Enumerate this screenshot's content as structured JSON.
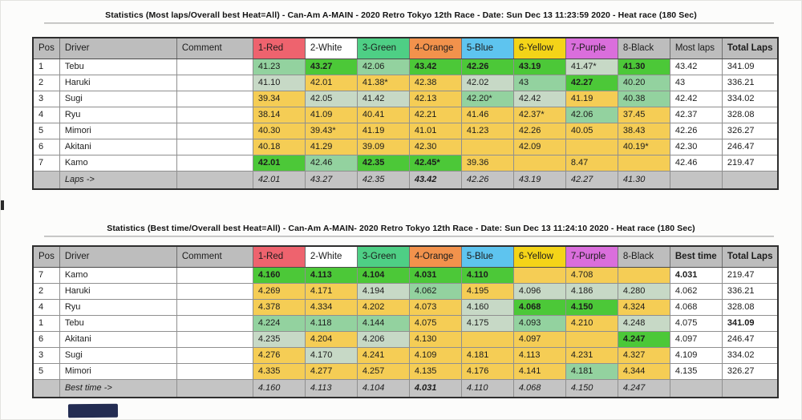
{
  "colors": {
    "hdr": "#bdbdbd",
    "red": "#ee636e",
    "white": "#ffffff",
    "green": "#4ecf85",
    "orange": "#f2924c",
    "blue": "#5ec4ef",
    "yellow": "#f4d418",
    "purple": "#da6edc",
    "y": "#f5cd55",
    "g1": "#c7d9c6",
    "g2": "#93d29f",
    "g3": "#4cc838",
    "w": "#ffffff",
    "footer_gray": "#c4c4c4"
  },
  "tables": [
    {
      "title": "Statistics (Most laps/Overall best Heat=All) - Can-Am A-MAIN - 2020 Retro Tokyo 12th Race - Date: Sun Dec 13 11:23:59 2020 - Heat race (180 Sec)",
      "columns": [
        {
          "label": "Pos",
          "bg": "hdr",
          "bold": false
        },
        {
          "label": "Driver",
          "bg": "hdr",
          "bold": false
        },
        {
          "label": "Comment",
          "bg": "hdr",
          "bold": false
        },
        {
          "label": "1-Red",
          "bg": "red",
          "bold": false
        },
        {
          "label": "2-White",
          "bg": "white",
          "bold": false
        },
        {
          "label": "3-Green",
          "bg": "green",
          "bold": false
        },
        {
          "label": "4-Orange",
          "bg": "orange",
          "bold": false
        },
        {
          "label": "5-Blue",
          "bg": "blue",
          "bold": false
        },
        {
          "label": "6-Yellow",
          "bg": "yellow",
          "bold": false
        },
        {
          "label": "7-Purple",
          "bg": "purple",
          "bold": false
        },
        {
          "label": "8-Black",
          "bg": "hdr",
          "bold": false
        },
        {
          "label": "Most laps",
          "bg": "hdr",
          "bold": false
        },
        {
          "label": "Total Laps",
          "bg": "hdr",
          "bold": true
        }
      ],
      "rows": [
        {
          "pos": "1",
          "driver": "Tebu",
          "comment": "",
          "heats": [
            [
              "41.23",
              "g2",
              0
            ],
            [
              "43.27",
              "g3",
              1
            ],
            [
              "42.06",
              "g2",
              0
            ],
            [
              "43.42",
              "g3",
              1
            ],
            [
              "42.26",
              "g3",
              1
            ],
            [
              "43.19",
              "g3",
              1
            ],
            [
              "41.47*",
              "g1",
              0
            ],
            [
              "41.30",
              "g3",
              1
            ]
          ],
          "summary": "43.42",
          "summary_bold": 0,
          "total": "341.09",
          "total_bold": 0
        },
        {
          "pos": "2",
          "driver": "Haruki",
          "comment": "",
          "heats": [
            [
              "41.10",
              "g1",
              0
            ],
            [
              "42.01",
              "y",
              0
            ],
            [
              "41.38*",
              "y",
              0
            ],
            [
              "42.38",
              "y",
              0
            ],
            [
              "42.02",
              "g1",
              0
            ],
            [
              "43",
              "g2",
              0
            ],
            [
              "42.27",
              "g3",
              1
            ],
            [
              "40.20",
              "g2",
              0
            ]
          ],
          "summary": "43",
          "summary_bold": 0,
          "total": "336.21",
          "total_bold": 0
        },
        {
          "pos": "3",
          "driver": "Sugi",
          "comment": "",
          "heats": [
            [
              "39.34",
              "y",
              0
            ],
            [
              "42.05",
              "g1",
              0
            ],
            [
              "41.42",
              "g1",
              0
            ],
            [
              "42.13",
              "y",
              0
            ],
            [
              "42.20*",
              "g2",
              0
            ],
            [
              "42.42",
              "g1",
              0
            ],
            [
              "41.19",
              "y",
              0
            ],
            [
              "40.38",
              "g2",
              0
            ]
          ],
          "summary": "42.42",
          "summary_bold": 0,
          "total": "334.02",
          "total_bold": 0
        },
        {
          "pos": "4",
          "driver": "Ryu",
          "comment": "",
          "heats": [
            [
              "38.14",
              "y",
              0
            ],
            [
              "41.09",
              "y",
              0
            ],
            [
              "40.41",
              "y",
              0
            ],
            [
              "42.21",
              "y",
              0
            ],
            [
              "41.46",
              "y",
              0
            ],
            [
              "42.37*",
              "y",
              0
            ],
            [
              "42.06",
              "g2",
              0
            ],
            [
              "37.45",
              "y",
              0
            ]
          ],
          "summary": "42.37",
          "summary_bold": 0,
          "total": "328.08",
          "total_bold": 0
        },
        {
          "pos": "5",
          "driver": "Mimori",
          "comment": "",
          "heats": [
            [
              "40.30",
              "y",
              0
            ],
            [
              "39.43*",
              "y",
              0
            ],
            [
              "41.19",
              "y",
              0
            ],
            [
              "41.01",
              "y",
              0
            ],
            [
              "41.23",
              "y",
              0
            ],
            [
              "42.26",
              "y",
              0
            ],
            [
              "40.05",
              "y",
              0
            ],
            [
              "38.43",
              "y",
              0
            ]
          ],
          "summary": "42.26",
          "summary_bold": 0,
          "total": "326.27",
          "total_bold": 0
        },
        {
          "pos": "6",
          "driver": "Akitani",
          "comment": "",
          "heats": [
            [
              "40.18",
              "y",
              0
            ],
            [
              "41.29",
              "y",
              0
            ],
            [
              "39.09",
              "y",
              0
            ],
            [
              "42.30",
              "y",
              0
            ],
            [
              "",
              "y",
              0
            ],
            [
              "42.09",
              "y",
              0
            ],
            [
              "",
              "y",
              0
            ],
            [
              "40.19*",
              "y",
              0
            ]
          ],
          "summary": "42.30",
          "summary_bold": 0,
          "total": "246.47",
          "total_bold": 0
        },
        {
          "pos": "7",
          "driver": "Kamo",
          "comment": "",
          "heats": [
            [
              "42.01",
              "g3",
              1
            ],
            [
              "42.46",
              "g2",
              0
            ],
            [
              "42.35",
              "g3",
              1
            ],
            [
              "42.45*",
              "g3",
              1
            ],
            [
              "39.36",
              "y",
              0
            ],
            [
              "",
              "y",
              0
            ],
            [
              "8.47",
              "y",
              0
            ],
            [
              "",
              "y",
              0
            ]
          ],
          "summary": "42.46",
          "summary_bold": 0,
          "total": "219.47",
          "total_bold": 0
        }
      ],
      "footer_label": "Laps ->",
      "footer_values": [
        [
          "42.01",
          0
        ],
        [
          "43.27",
          0
        ],
        [
          "42.35",
          0
        ],
        [
          "43.42",
          1
        ],
        [
          "42.26",
          0
        ],
        [
          "43.19",
          0
        ],
        [
          "42.27",
          0
        ],
        [
          "41.30",
          0
        ]
      ]
    },
    {
      "title": "Statistics (Best time/Overall best Heat=All) - Can-Am A-MAIN- 2020 Retro Tokyo 12th Race - Date: Sun Dec 13 11:24:10 2020 - Heat race (180 Sec)",
      "columns": [
        {
          "label": "Pos",
          "bg": "hdr",
          "bold": false
        },
        {
          "label": "Driver",
          "bg": "hdr",
          "bold": false
        },
        {
          "label": "Comment",
          "bg": "hdr",
          "bold": false
        },
        {
          "label": "1-Red",
          "bg": "red",
          "bold": false
        },
        {
          "label": "2-White",
          "bg": "white",
          "bold": false
        },
        {
          "label": "3-Green",
          "bg": "green",
          "bold": false
        },
        {
          "label": "4-Orange",
          "bg": "orange",
          "bold": false
        },
        {
          "label": "5-Blue",
          "bg": "blue",
          "bold": false
        },
        {
          "label": "6-Yellow",
          "bg": "yellow",
          "bold": false
        },
        {
          "label": "7-Purple",
          "bg": "purple",
          "bold": false
        },
        {
          "label": "8-Black",
          "bg": "hdr",
          "bold": false
        },
        {
          "label": "Best time",
          "bg": "hdr",
          "bold": true
        },
        {
          "label": "Total Laps",
          "bg": "hdr",
          "bold": true
        }
      ],
      "rows": [
        {
          "pos": "7",
          "driver": "Kamo",
          "comment": "",
          "heats": [
            [
              "4.160",
              "g3",
              1
            ],
            [
              "4.113",
              "g3",
              1
            ],
            [
              "4.104",
              "g3",
              1
            ],
            [
              "4.031",
              "g3",
              1
            ],
            [
              "4.110",
              "g3",
              1
            ],
            [
              "",
              "y",
              0
            ],
            [
              "4.708",
              "y",
              0
            ],
            [
              "",
              "y",
              0
            ]
          ],
          "summary": "4.031",
          "summary_bold": 1,
          "total": "219.47",
          "total_bold": 0
        },
        {
          "pos": "2",
          "driver": "Haruki",
          "comment": "",
          "heats": [
            [
              "4.269",
              "y",
              0
            ],
            [
              "4.171",
              "y",
              0
            ],
            [
              "4.194",
              "g1",
              0
            ],
            [
              "4.062",
              "g2",
              0
            ],
            [
              "4.195",
              "y",
              0
            ],
            [
              "4.096",
              "g1",
              0
            ],
            [
              "4.186",
              "g1",
              0
            ],
            [
              "4.280",
              "g1",
              0
            ]
          ],
          "summary": "4.062",
          "summary_bold": 0,
          "total": "336.21",
          "total_bold": 0
        },
        {
          "pos": "4",
          "driver": "Ryu",
          "comment": "",
          "heats": [
            [
              "4.378",
              "y",
              0
            ],
            [
              "4.334",
              "y",
              0
            ],
            [
              "4.202",
              "y",
              0
            ],
            [
              "4.073",
              "y",
              0
            ],
            [
              "4.160",
              "g1",
              0
            ],
            [
              "4.068",
              "g3",
              1
            ],
            [
              "4.150",
              "g3",
              1
            ],
            [
              "4.324",
              "y",
              0
            ]
          ],
          "summary": "4.068",
          "summary_bold": 0,
          "total": "328.08",
          "total_bold": 0
        },
        {
          "pos": "1",
          "driver": "Tebu",
          "comment": "",
          "heats": [
            [
              "4.224",
              "g2",
              0
            ],
            [
              "4.118",
              "g2",
              0
            ],
            [
              "4.144",
              "g2",
              0
            ],
            [
              "4.075",
              "y",
              0
            ],
            [
              "4.175",
              "g1",
              0
            ],
            [
              "4.093",
              "g2",
              0
            ],
            [
              "4.210",
              "y",
              0
            ],
            [
              "4.248",
              "g1",
              0
            ]
          ],
          "summary": "4.075",
          "summary_bold": 0,
          "total": "341.09",
          "total_bold": 1
        },
        {
          "pos": "6",
          "driver": "Akitani",
          "comment": "",
          "heats": [
            [
              "4.235",
              "g1",
              0
            ],
            [
              "4.204",
              "y",
              0
            ],
            [
              "4.206",
              "g1",
              0
            ],
            [
              "4.130",
              "y",
              0
            ],
            [
              "",
              "y",
              0
            ],
            [
              "4.097",
              "y",
              0
            ],
            [
              "",
              "y",
              0
            ],
            [
              "4.247",
              "g3",
              1
            ]
          ],
          "summary": "4.097",
          "summary_bold": 0,
          "total": "246.47",
          "total_bold": 0
        },
        {
          "pos": "3",
          "driver": "Sugi",
          "comment": "",
          "heats": [
            [
              "4.276",
              "y",
              0
            ],
            [
              "4.170",
              "g1",
              0
            ],
            [
              "4.241",
              "y",
              0
            ],
            [
              "4.109",
              "y",
              0
            ],
            [
              "4.181",
              "y",
              0
            ],
            [
              "4.113",
              "y",
              0
            ],
            [
              "4.231",
              "y",
              0
            ],
            [
              "4.327",
              "y",
              0
            ]
          ],
          "summary": "4.109",
          "summary_bold": 0,
          "total": "334.02",
          "total_bold": 0
        },
        {
          "pos": "5",
          "driver": "Mimori",
          "comment": "",
          "heats": [
            [
              "4.335",
              "y",
              0
            ],
            [
              "4.277",
              "y",
              0
            ],
            [
              "4.257",
              "y",
              0
            ],
            [
              "4.135",
              "y",
              0
            ],
            [
              "4.176",
              "y",
              0
            ],
            [
              "4.141",
              "y",
              0
            ],
            [
              "4.181",
              "g2",
              0
            ],
            [
              "4.344",
              "y",
              0
            ]
          ],
          "summary": "4.135",
          "summary_bold": 0,
          "total": "326.27",
          "total_bold": 0
        }
      ],
      "footer_label": "Best time ->",
      "footer_values": [
        [
          "4.160",
          0
        ],
        [
          "4.113",
          0
        ],
        [
          "4.104",
          0
        ],
        [
          "4.031",
          1
        ],
        [
          "4.110",
          0
        ],
        [
          "4.068",
          0
        ],
        [
          "4.150",
          0
        ],
        [
          "4.247",
          0
        ]
      ]
    }
  ]
}
